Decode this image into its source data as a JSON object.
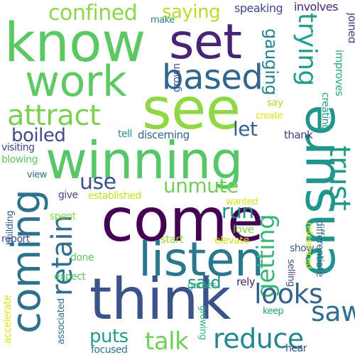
{
  "words": [
    {
      "text": "know",
      "color": "#5cc863"
    },
    {
      "text": "set",
      "color": "#482475"
    },
    {
      "text": "see",
      "color": "#8fd744"
    },
    {
      "text": "winning",
      "color": "#56c667"
    },
    {
      "text": "ensure",
      "color": "#1f958b"
    },
    {
      "text": "come",
      "color": "#440154"
    },
    {
      "text": "think",
      "color": "#3b528b"
    },
    {
      "text": "listen",
      "color": "#2a788e"
    },
    {
      "text": "coming",
      "color": "#2c728e"
    },
    {
      "text": "work",
      "color": "#5ec962"
    },
    {
      "text": "based",
      "color": "#31668e"
    },
    {
      "text": "attract",
      "color": "#7ad151"
    },
    {
      "text": "confined",
      "color": "#8bd646"
    },
    {
      "text": "saying",
      "color": "#b5de2b"
    },
    {
      "text": "speaking",
      "color": "#3f4788"
    },
    {
      "text": "trying",
      "color": "#1f9e89"
    },
    {
      "text": "gauging",
      "color": "#26828e"
    },
    {
      "text": "let",
      "color": "#355f8d"
    },
    {
      "text": "boiled",
      "color": "#3e4a89"
    },
    {
      "text": "use",
      "color": "#3b528b"
    },
    {
      "text": "unmute",
      "color": "#6ece58"
    },
    {
      "text": "trust",
      "color": "#1f9a8a"
    },
    {
      "text": "run",
      "color": "#218f8d"
    },
    {
      "text": "getting",
      "color": "#35b779"
    },
    {
      "text": "retain",
      "color": "#2e6e8e"
    },
    {
      "text": "said",
      "color": "#21918c"
    },
    {
      "text": "looks",
      "color": "#33638d"
    },
    {
      "text": "saw",
      "color": "#2d708e"
    },
    {
      "text": "talk",
      "color": "#6ece58"
    },
    {
      "text": "reduce",
      "color": "#24868e"
    },
    {
      "text": "puts",
      "color": "#1fa088"
    },
    {
      "text": "involves",
      "color": "#482173"
    },
    {
      "text": "make",
      "color": "#26828e"
    },
    {
      "text": "grown",
      "color": "#39568c"
    },
    {
      "text": "improves",
      "color": "#25ab82"
    },
    {
      "text": "joined",
      "color": "#46327e"
    },
    {
      "text": "creating",
      "color": "#1fa188"
    },
    {
      "text": "create",
      "color": "#dde318"
    },
    {
      "text": "say",
      "color": "#aadc32"
    },
    {
      "text": "tell",
      "color": "#20928c"
    },
    {
      "text": "discerning",
      "color": "#33638d"
    },
    {
      "text": "thank",
      "color": "#443a83"
    },
    {
      "text": "visiting",
      "color": "#3e4a89"
    },
    {
      "text": "blowing",
      "color": "#5ec962"
    },
    {
      "text": "view",
      "color": "#2e6e8e"
    },
    {
      "text": "give",
      "color": "#404688"
    },
    {
      "text": "established",
      "color": "#c2df23"
    },
    {
      "text": "wanted",
      "color": "#dde318"
    },
    {
      "text": "building",
      "color": "#32648e"
    },
    {
      "text": "spent",
      "color": "#8bd646"
    },
    {
      "text": "report",
      "color": "#3e4a89"
    },
    {
      "text": "start",
      "color": "#a0da39"
    },
    {
      "text": "love",
      "color": "#7ad151"
    },
    {
      "text": "elevate",
      "color": "#d2e21b"
    },
    {
      "text": "show",
      "color": "#38598c"
    },
    {
      "text": "differentiate",
      "color": "#31688e"
    },
    {
      "text": "referenced",
      "color": "#d8e219"
    },
    {
      "text": "done",
      "color": "#5ec962"
    },
    {
      "text": "selling",
      "color": "#3e4c8a"
    },
    {
      "text": "expect",
      "color": "#54c568"
    },
    {
      "text": "accelerate",
      "color": "#e5e419"
    },
    {
      "text": "associated",
      "color": "#2e6f8e"
    },
    {
      "text": "games",
      "color": "#35b779"
    },
    {
      "text": "rely",
      "color": "#482475"
    },
    {
      "text": "keep",
      "color": "#1fa188"
    },
    {
      "text": "focused",
      "color": "#2a778e"
    },
    {
      "text": "growing",
      "color": "#37b878"
    },
    {
      "text": "hear",
      "color": "#3f4788"
    }
  ]
}
